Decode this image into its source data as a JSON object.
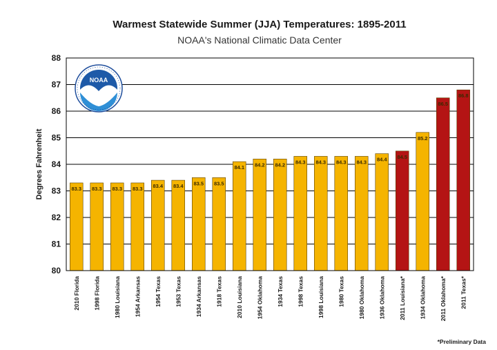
{
  "chart_data": {
    "type": "bar",
    "title": "Warmest Statewide Summer (JJA) Temperatures: 1895-2011",
    "subtitle": "NOAA's National Climatic Data Center",
    "ylabel": "Degrees Fahrenheit",
    "xlabel": "",
    "ylim": [
      80,
      88
    ],
    "yticks": [
      "80",
      "81",
      "82",
      "83",
      "84",
      "85",
      "86",
      "87",
      "88"
    ],
    "grid": true,
    "categories": [
      "2010 Florida",
      "1998 Florida",
      "1980 Louisiana",
      "1954 Arkansas",
      "1954 Texas",
      "1953 Texas",
      "1934 Arkansas",
      "1918 Texas",
      "2010 Louisiana",
      "1954 Oklahoma",
      "1934 Texas",
      "1998 Texas",
      "1998 Louisiana",
      "1980 Texas",
      "1980 Oklahoma",
      "1936 Oklahoma",
      "2011 Louisiana*",
      "1934 Oklahoma",
      "2011 Oklahoma*",
      "2011 Texas*"
    ],
    "values": [
      83.3,
      83.3,
      83.3,
      83.3,
      83.4,
      83.4,
      83.5,
      83.5,
      84.1,
      84.2,
      84.2,
      84.3,
      84.3,
      84.3,
      84.3,
      84.4,
      84.5,
      85.2,
      86.5,
      86.8
    ],
    "data_labels": [
      "83.3",
      "83.3",
      "83.3",
      "83.3",
      "83.4",
      "83.4",
      "83.5",
      "83.5",
      "84.1",
      "84.2",
      "84.2",
      "84.3",
      "84.3",
      "84.3",
      "84.3",
      "84.4",
      "84.5",
      "85.2",
      "86.5",
      "86.8"
    ],
    "highlight": [
      false,
      false,
      false,
      false,
      false,
      false,
      false,
      false,
      false,
      false,
      false,
      false,
      false,
      false,
      false,
      false,
      true,
      false,
      true,
      true
    ],
    "colors": {
      "bar": "#F5B400",
      "bar_highlight": "#B41414",
      "bar_outline": "#5a4200",
      "grid": "#000000",
      "plot_background": "#ffffff"
    },
    "footnote": "*Preliminary Data"
  },
  "logo": {
    "text": "NOAA",
    "ring_text": "NATIONAL OCEANIC AND ATMOSPHERIC ADMINISTRATION · U.S. DEPARTMENT OF COMMERCE"
  }
}
